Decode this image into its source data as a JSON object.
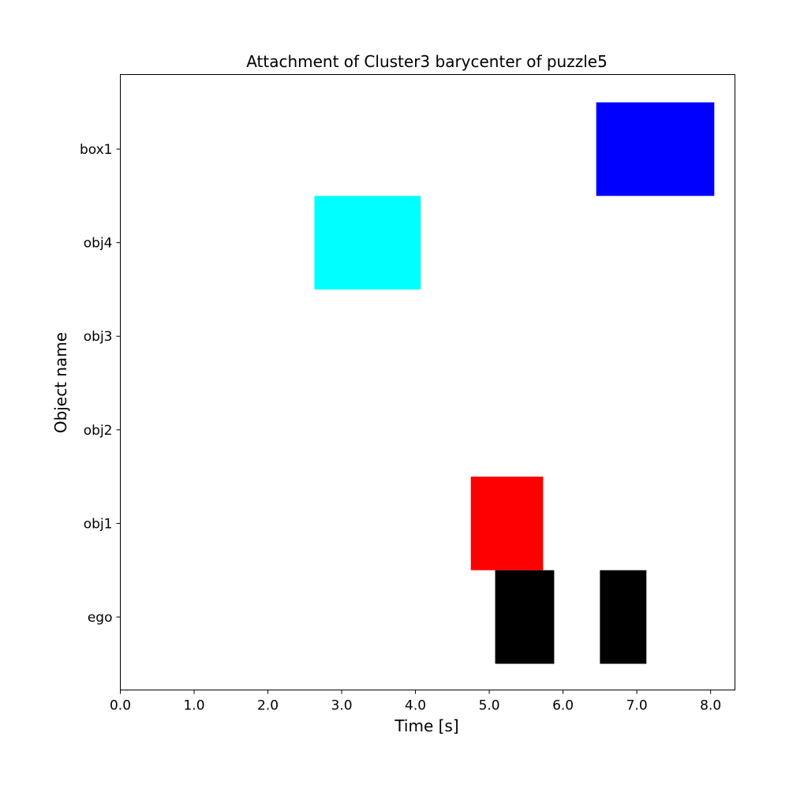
{
  "chart_data": {
    "type": "timeline",
    "title": "Attachment of Cluster3 barycenter of puzzle5",
    "xlabel": "Time [s]",
    "ylabel": "Object name",
    "xlim": [
      0.0,
      8.33
    ],
    "x_ticks": [
      "0.0",
      "1.0",
      "2.0",
      "3.0",
      "4.0",
      "5.0",
      "6.0",
      "7.0",
      "8.0"
    ],
    "x_tick_values": [
      0,
      1,
      2,
      3,
      4,
      5,
      6,
      7,
      8
    ],
    "categories": [
      "ego",
      "obj1",
      "obj2",
      "obj3",
      "obj4",
      "box1"
    ],
    "grid": false,
    "legend": "none",
    "intervals": [
      {
        "object": "box1",
        "start": 6.45,
        "end": 8.05,
        "color": "#0000ff"
      },
      {
        "object": "obj4",
        "start": 2.63,
        "end": 4.07,
        "color": "#00ffff"
      },
      {
        "object": "obj1",
        "start": 4.75,
        "end": 5.73,
        "color": "#ff0000"
      },
      {
        "object": "ego",
        "start": 5.08,
        "end": 5.88,
        "color": "#000000"
      },
      {
        "object": "ego",
        "start": 6.5,
        "end": 7.13,
        "color": "#000000"
      }
    ]
  }
}
